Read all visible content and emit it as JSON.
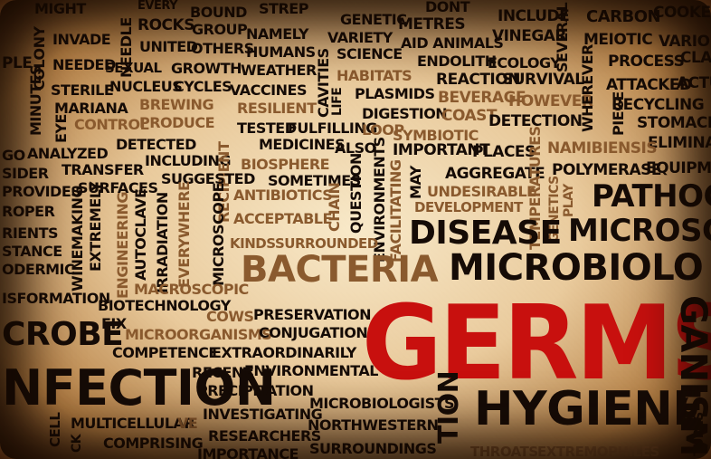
{
  "words": {
    "might": "MIGHT",
    "every": "EVERY",
    "bound": "BOUND",
    "strep": "STREP",
    "genetic": "GENETIC",
    "metres": "METRES",
    "dont": "DONT",
    "include": "INCLUDE",
    "carbon": "CARBON",
    "cooke": "COOKE",
    "colony": "COLONY",
    "invade": "INVADE",
    "rocks": "ROCKS",
    "group": "GROUP",
    "namely": "NAMELY",
    "variety": "VARIETY",
    "aid_animals": "AID ANIMALS",
    "vinegar": "VINEGAR",
    "meiotic": "MEIOTIC",
    "variou": "VARIOU",
    "needle": "NEEDLE",
    "united": "UNITED",
    "others": "OTHERS",
    "humans": "HUMANS",
    "science": "SCIENCE",
    "endolith": "ENDOLITH",
    "ecology": "ECOLOGY",
    "process": "PROCESS",
    "clas": "CLAS",
    "ple": "PLE",
    "needed": "NEEDED",
    "sexual": "SEXUAL",
    "growth": "GROWTH",
    "weather": "WEATHER",
    "cavities": "CAVITIES",
    "habitats": "HABITATS",
    "reaction": "REACTION",
    "survival": "SURVIVAL",
    "several": "SEVERAL",
    "attacked": "ATTACKED",
    "actu": "ACTU",
    "minutes": "MINUTES",
    "sterile": "STERILE",
    "nucleus": "NUCLEUS",
    "cycles": "CYCLES",
    "vaccines": "VACCINES",
    "plasmids": "PLASMIDS",
    "beverage": "BEVERAGE",
    "however": "HOWEVER",
    "wherever": "WHEREVER",
    "recycling": "RECYCLING",
    "mariana": "MARIANA",
    "brewing": "BREWING",
    "resilient": "RESILIENT",
    "life": "LIFE",
    "digestion": "DIGESTION",
    "coast": "COAST",
    "piece": "PIECE",
    "stomachs": "STOMACHS",
    "eye": "EYE",
    "control": "CONTROL",
    "produce": "PRODUCE",
    "tested": "TESTED",
    "fulfilling": "FULFILLING",
    "loop": "LOOP",
    "detection": "DETECTION",
    "eliminat": "ELIMINAT",
    "detected": "DETECTED",
    "medicines": "MEDICINES",
    "also": "ALSO",
    "important": "IMPORTANT",
    "places": "PLACES",
    "symbiotic": "SYMBIOTIC",
    "namibiensis": "NAMIBIENSIS",
    "go": "GO",
    "analyzed": "ANALYZED",
    "including": "INCLUDING",
    "biosphere": "BIOSPHERE",
    "recipient": "RECIPIENT",
    "aggregate": "AGGREGATE",
    "polymerase": "POLYMERASE",
    "equipme": "EQUIPME",
    "sider": "SIDER",
    "transfer": "TRANSFER",
    "suggested": "SUGGESTED",
    "sometimes": "SOMETIMES",
    "may": "MAY",
    "undesirable": "UNDESIRABLE",
    "play": "PLAY",
    "provides": "PROVIDES",
    "surfaces": "SURFACES",
    "antibiotics": "ANTIBIOTICS",
    "chain": "CHAIN",
    "question": "QUESTION",
    "facilitating": "FACILITATING",
    "temperatures": "TEMPERATURES",
    "pathoge": "PATHOGE",
    "roper": "ROPER",
    "development": "DEVELOPMENT",
    "acceptable": "ACCEPTABLE",
    "environments": "ENVIRONMENTS",
    "genetics": "GENETICS",
    "microsco": "MICROSCO",
    "rients": "RIENTS",
    "extremely": "EXTREMELY",
    "kinds": "KINDS",
    "surrounded": "SURROUNDED",
    "disease": "DISEASE",
    "stance": "STANCE",
    "winemaking": "WINEMAKING",
    "autoclave": "AUTOCLAVE",
    "irradiation": "IRRADIATION",
    "everywhere": "EVERYWHERE",
    "microscope": "MICROSCOPE",
    "bacteria": "BACTERIA",
    "microbiolo": "MICROBIOLO",
    "odermic": "ODERMIC",
    "engineering": "ENGINEERING",
    "macroscopic": "MACROSCOPIC",
    "isformation": "ISFORMATION",
    "biotechnology": "BIOTECHNOLOGY",
    "fix": "FIX",
    "cows": "COWS",
    "preservation": "PRESERVATION",
    "crobe": "CROBE",
    "microorganisms": "MICROORGANISMS",
    "conjugation": "CONJUGATION",
    "germs": "GERMS",
    "ganism": "GANISM",
    "competence": "COMPETENCE",
    "extraordinarily": "EXTRAORDINARILY",
    "nfection": "NFECTION",
    "recent": "RECENT",
    "environmental": "ENVIRONMENTAL",
    "precipitation": "PRECIPITATION",
    "microbiologists": "MICROBIOLOGISTS",
    "tion": "TION",
    "hygiene": "HYGIENE",
    "investigating": "INVESTIGATING",
    "cell": "CELL",
    "multicellular": "MULTICELLULAR",
    "ve": "VE",
    "northwestern": "NORTHWESTERN",
    "ck": "CK",
    "comprising": "COMPRISING",
    "researchers": "RESEARCHERS",
    "importance": "IMPORTANCE",
    "surroundings": "SURROUNDINGS",
    "throats": "THROATS",
    "extremophiles": "EXTREMOPHILES",
    "tures": "TURES"
  },
  "colors": {
    "dark": "#150b06",
    "brown": "#8a5a2e",
    "light_brown": "#a8773f",
    "red": "#c8100e"
  }
}
